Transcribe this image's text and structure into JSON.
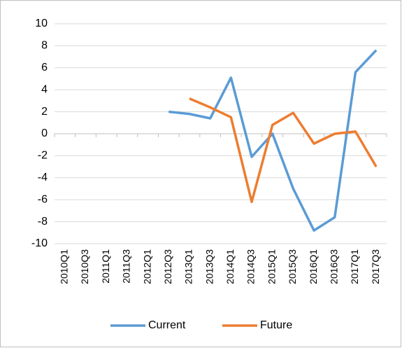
{
  "chart_data": {
    "type": "line",
    "categories": [
      "2010Q1",
      "2010Q3",
      "2011Q1",
      "2011Q3",
      "2012Q1",
      "2012Q3",
      "2013Q1",
      "2013Q3",
      "2014Q1",
      "2014Q3",
      "2015Q1",
      "2015Q3",
      "2016Q1",
      "2016Q3",
      "2017Q1",
      "2017Q3"
    ],
    "series": [
      {
        "name": "Current",
        "color": "#5b9bd5",
        "values": [
          null,
          null,
          null,
          null,
          null,
          2.0,
          1.8,
          1.4,
          5.1,
          -2.1,
          0.0,
          -5.0,
          -8.8,
          -7.6,
          5.6,
          7.6
        ]
      },
      {
        "name": "Future",
        "color": "#ed7d31",
        "values": [
          null,
          null,
          null,
          null,
          null,
          null,
          3.2,
          2.4,
          1.5,
          -6.2,
          0.8,
          1.9,
          -0.9,
          0.0,
          0.2,
          -3.0
        ]
      }
    ],
    "ylim": [
      -10,
      10
    ],
    "yticks": [
      -10,
      -8,
      -6,
      -4,
      -2,
      0,
      2,
      4,
      6,
      8,
      10
    ],
    "grid": true,
    "legend": "bottom"
  }
}
